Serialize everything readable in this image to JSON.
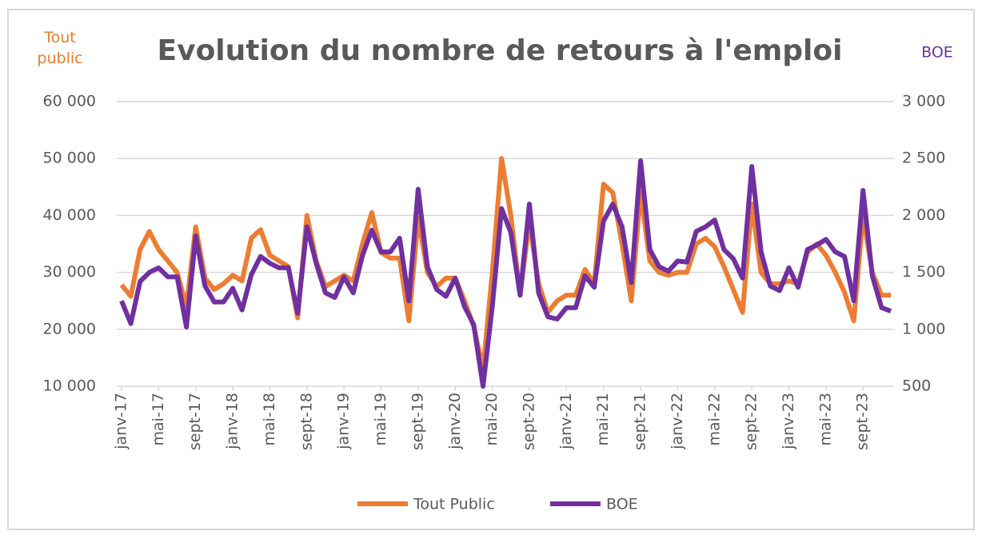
{
  "chart_data": {
    "type": "line",
    "title": "Evolution du nombre de retours à l'emploi",
    "ylabel": "Tout public",
    "y2label": "BOE",
    "categories": [
      "janv-17",
      null,
      null,
      null,
      "mai-17",
      null,
      null,
      null,
      "sept-17",
      null,
      null,
      null,
      "janv-18",
      null,
      null,
      null,
      "mai-18",
      null,
      null,
      null,
      "sept-18",
      null,
      null,
      null,
      "janv-19",
      null,
      null,
      null,
      "mai-19",
      null,
      null,
      null,
      "sept-19",
      null,
      null,
      null,
      "janv-20",
      null,
      null,
      null,
      "mai-20",
      null,
      null,
      null,
      "sept-20",
      null,
      null,
      null,
      "janv-21",
      null,
      null,
      null,
      "mai-21",
      null,
      null,
      null,
      "sept-21",
      null,
      null,
      null,
      "janv-22",
      null,
      null,
      null,
      "mai-22",
      null,
      null,
      null,
      "sept-22",
      null,
      null,
      null,
      "janv-23",
      null,
      null,
      null,
      "mai-23",
      null,
      null,
      null,
      "sept-23",
      null,
      null,
      null
    ],
    "series": [
      {
        "name": "Tout Public",
        "color": "#ed7d31",
        "values": [
          27800,
          25800,
          34000,
          37200,
          34000,
          32000,
          30000,
          24000,
          38000,
          29000,
          27000,
          28000,
          29500,
          28500,
          36000,
          37500,
          33000,
          32000,
          31000,
          22000,
          40000,
          32000,
          27500,
          28500,
          29500,
          28500,
          35000,
          40500,
          33500,
          32500,
          32500,
          21500,
          39500,
          30000,
          27500,
          29000,
          29000,
          25000,
          20500,
          13000,
          30000,
          50000,
          40000,
          26000,
          39000,
          28000,
          23000,
          25000,
          26000,
          26000,
          30500,
          28000,
          45500,
          44000,
          35000,
          25000,
          44000,
          32000,
          30000,
          29500,
          30000,
          30000,
          35000,
          36000,
          34500,
          31000,
          27000,
          23000,
          42000,
          30000,
          28000,
          28000,
          28500,
          28000,
          33500,
          35000,
          33000,
          30000,
          26500,
          21500,
          40000,
          30000,
          26000,
          26000
        ]
      },
      {
        "name": "BOE",
        "color": "#7030a0",
        "axis": "y2",
        "values": [
          1250,
          1050,
          1420,
          1500,
          1540,
          1460,
          1460,
          1020,
          1820,
          1380,
          1240,
          1240,
          1360,
          1170,
          1480,
          1640,
          1580,
          1540,
          1540,
          1140,
          1900,
          1580,
          1320,
          1280,
          1460,
          1320,
          1650,
          1870,
          1680,
          1680,
          1800,
          1250,
          2230,
          1550,
          1350,
          1290,
          1450,
          1200,
          1040,
          500,
          1200,
          2060,
          1850,
          1300,
          2100,
          1320,
          1110,
          1090,
          1190,
          1190,
          1470,
          1370,
          1950,
          2100,
          1900,
          1410,
          2480,
          1700,
          1550,
          1510,
          1600,
          1590,
          1860,
          1900,
          1960,
          1700,
          1620,
          1450,
          2430,
          1680,
          1380,
          1340,
          1540,
          1370,
          1700,
          1740,
          1790,
          1680,
          1640,
          1250,
          2220,
          1470,
          1190,
          1160
        ]
      }
    ],
    "ylim": [
      10000,
      60000
    ],
    "yticks": [
      {
        "value": 10000,
        "label": "10 000"
      },
      {
        "value": 20000,
        "label": "20 000"
      },
      {
        "value": 30000,
        "label": "30 000"
      },
      {
        "value": 40000,
        "label": "40 000"
      },
      {
        "value": 50000,
        "label": "50 000"
      },
      {
        "value": 60000,
        "label": "60 000"
      }
    ],
    "y2lim": [
      500,
      3000
    ],
    "y2ticks": [
      500,
      {
        "value": 1000,
        "label": "1 000"
      },
      {
        "value": 1500,
        "label": "1 500"
      },
      {
        "value": 2000,
        "label": "2 000"
      },
      {
        "value": 2500,
        "label": "2 500"
      },
      {
        "value": 3000,
        "label": "3 000"
      }
    ],
    "grid": true,
    "legend": "bottom"
  }
}
